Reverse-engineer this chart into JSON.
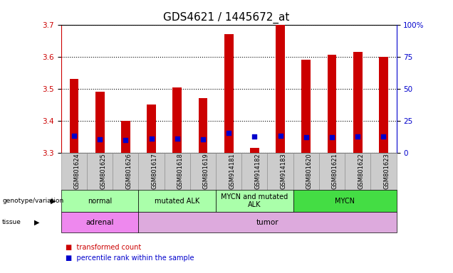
{
  "title": "GDS4621 / 1445672_at",
  "samples": [
    "GSM801624",
    "GSM801625",
    "GSM801626",
    "GSM801617",
    "GSM801618",
    "GSM801619",
    "GSM914181",
    "GSM914182",
    "GSM914183",
    "GSM801620",
    "GSM801621",
    "GSM801622",
    "GSM801623"
  ],
  "red_values": [
    3.53,
    3.49,
    3.4,
    3.45,
    3.505,
    3.47,
    3.67,
    3.315,
    3.7,
    3.59,
    3.605,
    3.615,
    3.6
  ],
  "blue_values": [
    3.353,
    3.342,
    3.34,
    3.345,
    3.345,
    3.343,
    3.363,
    3.35,
    3.353,
    3.348,
    3.348,
    3.35,
    3.35
  ],
  "ymin": 3.3,
  "ymax": 3.7,
  "yticks_left": [
    3.3,
    3.4,
    3.5,
    3.6,
    3.7
  ],
  "yticks_right": [
    0,
    25,
    50,
    75,
    100
  ],
  "yticks_right_labels": [
    "0",
    "25",
    "50",
    "75",
    "100%"
  ],
  "bar_color": "#CC0000",
  "dot_color": "#0000CC",
  "genotype_groups": [
    {
      "label": "normal",
      "start": 0,
      "end": 3,
      "color": "#AAFFAA"
    },
    {
      "label": "mutated ALK",
      "start": 3,
      "end": 6,
      "color": "#AAFFAA"
    },
    {
      "label": "MYCN and mutated\nALK",
      "start": 6,
      "end": 9,
      "color": "#AAFFAA"
    },
    {
      "label": "MYCN",
      "start": 9,
      "end": 13,
      "color": "#44DD44"
    }
  ],
  "tissue_groups": [
    {
      "label": "adrenal",
      "start": 0,
      "end": 3,
      "color": "#EE88EE"
    },
    {
      "label": "tumor",
      "start": 3,
      "end": 13,
      "color": "#DDAADD"
    }
  ],
  "bar_width": 0.35,
  "dot_size": 18,
  "tick_label_color_left": "#CC0000",
  "tick_label_color_right": "#0000CC",
  "title_fontsize": 11,
  "axis_fontsize": 7.5,
  "xtick_fontsize": 6.0,
  "genotype_fontsize": 7.0,
  "tissue_fontsize": 7.5,
  "legend_fontsize": 7.0,
  "xtick_bg_color": "#CCCCCC",
  "xtick_border_color": "#888888"
}
